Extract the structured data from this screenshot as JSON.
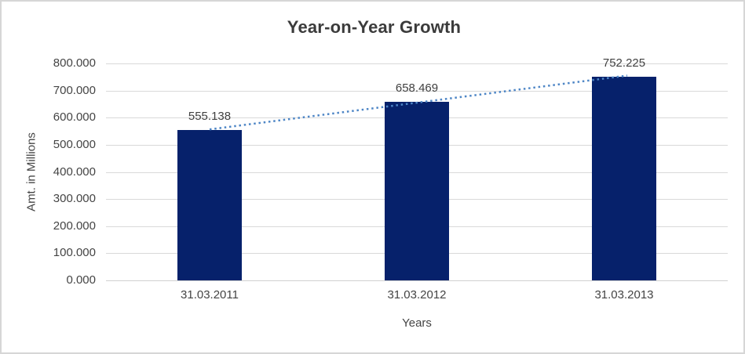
{
  "chart_data": {
    "type": "bar",
    "title": "Year-on-Year Growth",
    "xlabel": "Years",
    "ylabel": "Amt. in Millions",
    "categories": [
      "31.03.2011",
      "31.03.2012",
      "31.03.2013"
    ],
    "values": [
      555.138,
      658.469,
      752.225
    ],
    "data_labels": [
      "555.138",
      "658.469",
      "752.225"
    ],
    "ylim": [
      0,
      800
    ],
    "ytick_step": 100,
    "ytick_labels_top_to_bottom": [
      "800.000",
      "700.000",
      "600.000",
      "500.000",
      "400.000",
      "300.000",
      "200.000",
      "100.000",
      "0.000"
    ],
    "grid": true,
    "legend_position": "none",
    "trendline": {
      "kind": "linear",
      "line_style": "dotted",
      "color": "#4e86c6"
    },
    "colors": {
      "bar_fill": "#06216b",
      "gridline": "#d9d9d9",
      "title_text": "#3b3b3b",
      "axis_text": "#444444",
      "background": "#ffffff",
      "frame_border": "#d6d6d6"
    }
  }
}
